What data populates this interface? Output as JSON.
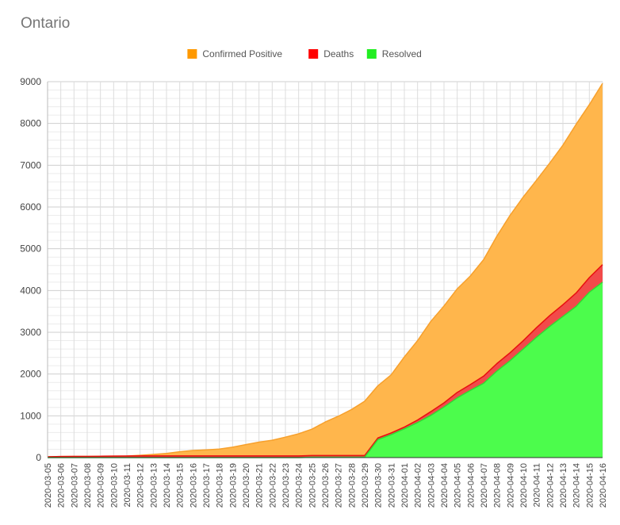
{
  "chart_data": {
    "type": "area",
    "title": "Ontario",
    "xlabel": "",
    "ylabel": "",
    "ylim": [
      0,
      9000
    ],
    "yticks": [
      "0",
      "1000",
      "2000",
      "3000",
      "4000",
      "5000",
      "6000",
      "7000",
      "8000",
      "9000"
    ],
    "grid": true,
    "legend": "top",
    "x": [
      "2020-03-05",
      "2020-03-06",
      "2020-03-07",
      "2020-03-08",
      "2020-03-09",
      "2020-03-10",
      "2020-03-11",
      "2020-03-12",
      "2020-03-13",
      "2020-03-14",
      "2020-03-15",
      "2020-03-16",
      "2020-03-17",
      "2020-03-18",
      "2020-03-19",
      "2020-03-20",
      "2020-03-21",
      "2020-03-22",
      "2020-03-23",
      "2020-03-24",
      "2020-03-25",
      "2020-03-26",
      "2020-03-27",
      "2020-03-28",
      "2020-03-29",
      "2020-03-30",
      "2020-03-31",
      "2020-04-01",
      "2020-04-02",
      "2020-04-03",
      "2020-04-04",
      "2020-04-05",
      "2020-04-06",
      "2020-04-07",
      "2020-04-08",
      "2020-04-09",
      "2020-04-10",
      "2020-04-11",
      "2020-04-12",
      "2020-04-13",
      "2020-04-14",
      "2020-04-15",
      "2020-04-16"
    ],
    "series": [
      {
        "name": "Confirmed Positive",
        "color": "#f7a02c",
        "fill": "#ffb64c",
        "values": [
          20,
          25,
          28,
          28,
          32,
          35,
          38,
          55,
          75,
          100,
          140,
          170,
          185,
          205,
          250,
          310,
          370,
          415,
          490,
          570,
          680,
          850,
          990,
          1150,
          1350,
          1720,
          1980,
          2410,
          2800,
          3260,
          3630,
          4040,
          4350,
          4740,
          5300,
          5800,
          6240,
          6640,
          7050,
          7480,
          7980,
          8450,
          8960
        ]
      },
      {
        "name": "Deaths",
        "color": "#e81010",
        "fill": "#f24a4a",
        "values": [
          20,
          25,
          28,
          28,
          32,
          35,
          38,
          40,
          40,
          40,
          40,
          40,
          40,
          40,
          40,
          40,
          40,
          40,
          40,
          40,
          50,
          50,
          50,
          50,
          50,
          470,
          590,
          730,
          900,
          1100,
          1310,
          1560,
          1750,
          1950,
          2250,
          2510,
          2800,
          3110,
          3400,
          3660,
          3940,
          4310,
          4620
        ]
      },
      {
        "name": "Resolved",
        "color": "#33d933",
        "fill": "#4cfc4c",
        "values": [
          0,
          0,
          0,
          0,
          0,
          0,
          0,
          0,
          0,
          0,
          0,
          0,
          0,
          0,
          0,
          0,
          0,
          0,
          0,
          0,
          10,
          10,
          10,
          10,
          10,
          430,
          550,
          690,
          840,
          1010,
          1210,
          1430,
          1610,
          1780,
          2070,
          2320,
          2600,
          2880,
          3140,
          3380,
          3620,
          3960,
          4200
        ]
      }
    ]
  }
}
